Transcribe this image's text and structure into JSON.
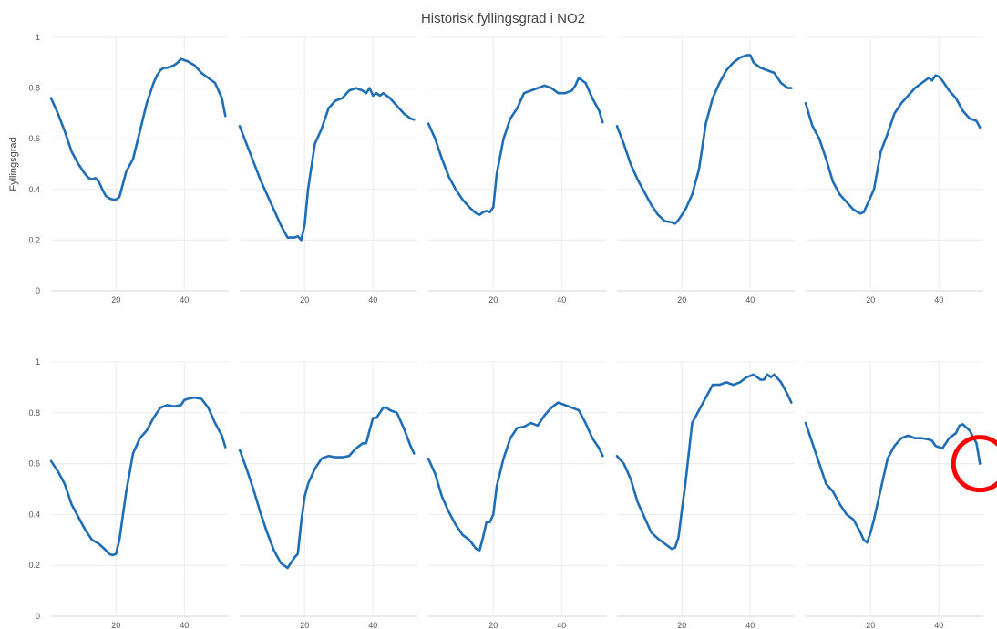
{
  "chart_data": {
    "type": "line",
    "title": "Historisk fyllingsgrad i NO2",
    "ylabel": "Fyllingsgrad",
    "xlabel": "",
    "ylim": [
      0,
      1
    ],
    "xlim": [
      1,
      53
    ],
    "yticks": [
      "0",
      "0.2",
      "0.4",
      "0.6",
      "0.8",
      "1"
    ],
    "xticks": [
      "20",
      "40"
    ],
    "grid": true,
    "legend": "none",
    "line_color": "#1f6eb5",
    "highlight_color": "#ff0000",
    "highlight": {
      "panel": 10,
      "x": 52,
      "y": 0.6
    },
    "panels": [
      {
        "x": [
          1,
          3,
          5,
          7,
          9,
          11,
          12,
          13,
          14,
          15,
          16,
          17,
          18,
          19,
          20,
          21,
          23,
          25,
          27,
          29,
          31,
          32,
          33,
          34,
          35,
          36,
          37,
          38,
          39,
          40,
          41,
          43,
          45,
          47,
          49,
          51,
          52
        ],
        "y": [
          0.76,
          0.7,
          0.63,
          0.55,
          0.5,
          0.46,
          0.445,
          0.44,
          0.445,
          0.43,
          0.4,
          0.375,
          0.365,
          0.36,
          0.36,
          0.37,
          0.47,
          0.52,
          0.63,
          0.74,
          0.82,
          0.85,
          0.87,
          0.88,
          0.88,
          0.885,
          0.89,
          0.9,
          0.915,
          0.91,
          0.905,
          0.89,
          0.86,
          0.84,
          0.82,
          0.76,
          0.69
        ]
      },
      {
        "x": [
          1,
          3,
          5,
          7,
          9,
          11,
          13,
          15,
          16,
          17,
          18,
          19,
          20,
          21,
          23,
          25,
          27,
          29,
          31,
          33,
          35,
          37,
          38,
          39,
          40,
          41,
          42,
          43,
          44,
          45,
          47,
          49,
          51,
          52
        ],
        "y": [
          0.65,
          0.58,
          0.51,
          0.44,
          0.38,
          0.32,
          0.26,
          0.21,
          0.21,
          0.21,
          0.215,
          0.2,
          0.26,
          0.4,
          0.58,
          0.64,
          0.72,
          0.75,
          0.76,
          0.79,
          0.8,
          0.79,
          0.78,
          0.8,
          0.77,
          0.78,
          0.77,
          0.78,
          0.77,
          0.76,
          0.73,
          0.7,
          0.68,
          0.675
        ]
      },
      {
        "x": [
          1,
          3,
          5,
          7,
          9,
          11,
          13,
          15,
          16,
          17,
          18,
          19,
          20,
          21,
          23,
          25,
          27,
          29,
          31,
          33,
          35,
          37,
          39,
          41,
          43,
          44,
          45,
          47,
          49,
          51,
          52
        ],
        "y": [
          0.66,
          0.6,
          0.52,
          0.45,
          0.4,
          0.36,
          0.33,
          0.305,
          0.3,
          0.31,
          0.315,
          0.31,
          0.33,
          0.46,
          0.6,
          0.68,
          0.72,
          0.78,
          0.79,
          0.8,
          0.81,
          0.8,
          0.78,
          0.78,
          0.79,
          0.81,
          0.84,
          0.82,
          0.76,
          0.71,
          0.665
        ]
      },
      {
        "x": [
          1,
          3,
          5,
          7,
          9,
          11,
          13,
          15,
          17,
          18,
          19,
          20,
          21,
          23,
          25,
          27,
          29,
          31,
          33,
          35,
          37,
          38,
          39,
          40,
          41,
          43,
          45,
          47,
          49,
          51,
          52
        ],
        "y": [
          0.65,
          0.58,
          0.5,
          0.44,
          0.39,
          0.34,
          0.3,
          0.275,
          0.27,
          0.265,
          0.28,
          0.3,
          0.32,
          0.38,
          0.48,
          0.66,
          0.76,
          0.82,
          0.87,
          0.9,
          0.92,
          0.925,
          0.93,
          0.93,
          0.9,
          0.88,
          0.87,
          0.86,
          0.82,
          0.8,
          0.8
        ]
      },
      {
        "x": [
          1,
          3,
          5,
          7,
          9,
          11,
          13,
          15,
          17,
          18,
          19,
          20,
          21,
          23,
          25,
          27,
          29,
          31,
          33,
          35,
          37,
          38,
          39,
          40,
          41,
          43,
          45,
          47,
          49,
          51,
          52
        ],
        "y": [
          0.74,
          0.65,
          0.6,
          0.52,
          0.43,
          0.38,
          0.35,
          0.32,
          0.305,
          0.31,
          0.34,
          0.37,
          0.4,
          0.55,
          0.62,
          0.7,
          0.74,
          0.77,
          0.8,
          0.82,
          0.84,
          0.83,
          0.85,
          0.845,
          0.83,
          0.79,
          0.76,
          0.71,
          0.68,
          0.67,
          0.645
        ]
      },
      {
        "x": [
          1,
          3,
          5,
          7,
          9,
          11,
          13,
          15,
          17,
          18,
          19,
          20,
          21,
          23,
          25,
          27,
          29,
          31,
          33,
          35,
          37,
          39,
          40,
          41,
          43,
          45,
          47,
          49,
          51,
          52
        ],
        "y": [
          0.61,
          0.57,
          0.52,
          0.44,
          0.39,
          0.34,
          0.3,
          0.285,
          0.26,
          0.245,
          0.24,
          0.245,
          0.3,
          0.49,
          0.64,
          0.7,
          0.73,
          0.78,
          0.82,
          0.83,
          0.825,
          0.83,
          0.85,
          0.855,
          0.86,
          0.855,
          0.82,
          0.76,
          0.71,
          0.665
        ]
      },
      {
        "x": [
          1,
          3,
          5,
          7,
          9,
          11,
          13,
          15,
          17,
          18,
          19,
          20,
          21,
          23,
          25,
          27,
          29,
          31,
          33,
          35,
          37,
          38,
          39,
          40,
          41,
          42,
          43,
          44,
          45,
          47,
          49,
          51,
          52
        ],
        "y": [
          0.655,
          0.58,
          0.5,
          0.41,
          0.33,
          0.26,
          0.21,
          0.19,
          0.23,
          0.245,
          0.37,
          0.47,
          0.52,
          0.58,
          0.62,
          0.63,
          0.625,
          0.625,
          0.63,
          0.66,
          0.68,
          0.68,
          0.73,
          0.78,
          0.78,
          0.8,
          0.82,
          0.82,
          0.81,
          0.8,
          0.74,
          0.67,
          0.64
        ]
      },
      {
        "x": [
          1,
          3,
          5,
          7,
          9,
          11,
          13,
          15,
          16,
          17,
          18,
          19,
          20,
          21,
          23,
          25,
          27,
          29,
          31,
          33,
          35,
          37,
          39,
          41,
          43,
          45,
          47,
          49,
          51,
          52
        ],
        "y": [
          0.62,
          0.56,
          0.47,
          0.41,
          0.36,
          0.32,
          0.3,
          0.265,
          0.26,
          0.31,
          0.37,
          0.37,
          0.4,
          0.51,
          0.62,
          0.7,
          0.74,
          0.745,
          0.76,
          0.75,
          0.79,
          0.82,
          0.84,
          0.83,
          0.82,
          0.81,
          0.76,
          0.7,
          0.66,
          0.63
        ]
      },
      {
        "x": [
          1,
          3,
          5,
          7,
          9,
          11,
          13,
          15,
          17,
          18,
          19,
          20,
          21,
          23,
          25,
          27,
          29,
          31,
          33,
          35,
          37,
          39,
          41,
          43,
          44,
          45,
          46,
          47,
          49,
          51,
          52
        ],
        "y": [
          0.63,
          0.6,
          0.54,
          0.45,
          0.39,
          0.33,
          0.305,
          0.285,
          0.265,
          0.27,
          0.31,
          0.42,
          0.52,
          0.76,
          0.81,
          0.86,
          0.91,
          0.91,
          0.92,
          0.91,
          0.92,
          0.94,
          0.95,
          0.93,
          0.93,
          0.95,
          0.94,
          0.95,
          0.92,
          0.87,
          0.84
        ]
      },
      {
        "x": [
          1,
          3,
          5,
          7,
          9,
          11,
          13,
          15,
          17,
          18,
          19,
          20,
          21,
          23,
          25,
          27,
          29,
          31,
          33,
          35,
          37,
          38,
          39,
          41,
          43,
          45,
          46,
          47,
          49,
          51,
          52
        ],
        "y": [
          0.76,
          0.68,
          0.6,
          0.52,
          0.49,
          0.44,
          0.4,
          0.38,
          0.33,
          0.3,
          0.29,
          0.33,
          0.38,
          0.5,
          0.62,
          0.67,
          0.7,
          0.71,
          0.7,
          0.7,
          0.695,
          0.69,
          0.67,
          0.66,
          0.7,
          0.72,
          0.75,
          0.755,
          0.73,
          0.68,
          0.6
        ]
      }
    ]
  }
}
